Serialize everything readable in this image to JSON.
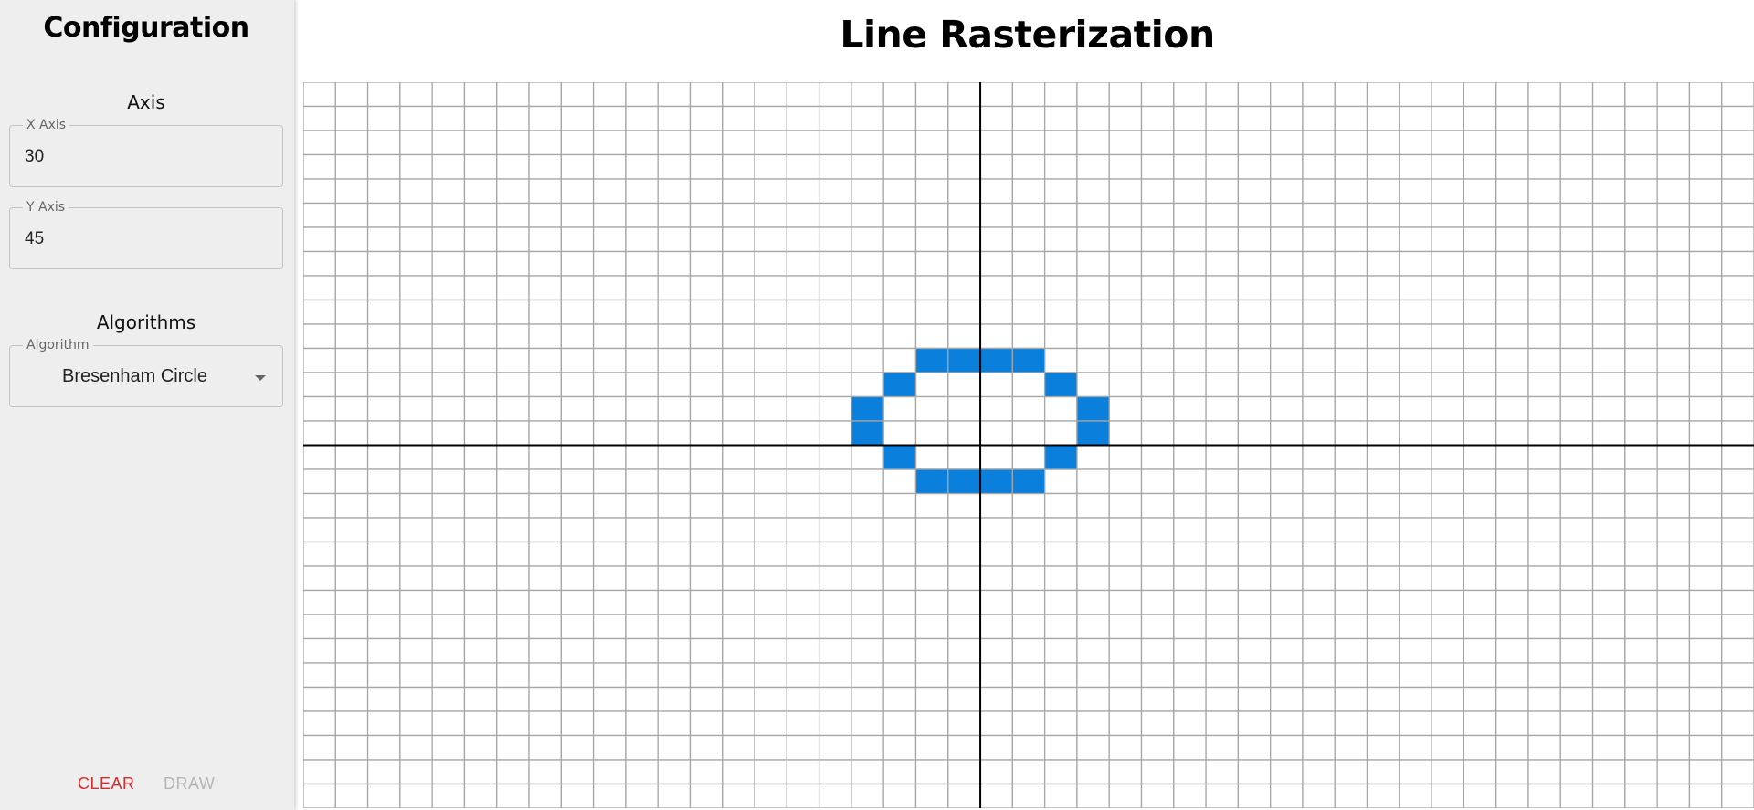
{
  "sidebar": {
    "title": "Configuration",
    "axis_heading": "Axis",
    "x_axis": {
      "label": "X Axis",
      "value": "30"
    },
    "y_axis": {
      "label": "Y Axis",
      "value": "45"
    },
    "algorithms_heading": "Algorithms",
    "algorithm": {
      "label": "Algorithm",
      "value": "Bresenham Circle"
    },
    "clear_label": "CLEAR",
    "draw_label": "DRAW"
  },
  "main": {
    "title": "Line Rasterization"
  },
  "grid": {
    "columns": 45,
    "rows": 30,
    "origin": {
      "col": 21,
      "row": 15
    },
    "fill_color": "#0a7fdc",
    "line_color": "#a6a6a6",
    "axis_color": "#000000",
    "filled_cells": [
      [
        -2,
        3
      ],
      [
        -1,
        3
      ],
      [
        0,
        3
      ],
      [
        1,
        3
      ],
      [
        -3,
        2
      ],
      [
        2,
        2
      ],
      [
        -4,
        1
      ],
      [
        3,
        1
      ],
      [
        -4,
        0
      ],
      [
        3,
        0
      ],
      [
        -3,
        -1
      ],
      [
        2,
        -1
      ],
      [
        -2,
        -2
      ],
      [
        -1,
        -2
      ],
      [
        0,
        -2
      ],
      [
        1,
        -2
      ]
    ]
  },
  "colors": {
    "sidebar_bg": "#eeeeee",
    "clear": "#d32f2f",
    "draw_disabled": "#b5b5b5"
  }
}
